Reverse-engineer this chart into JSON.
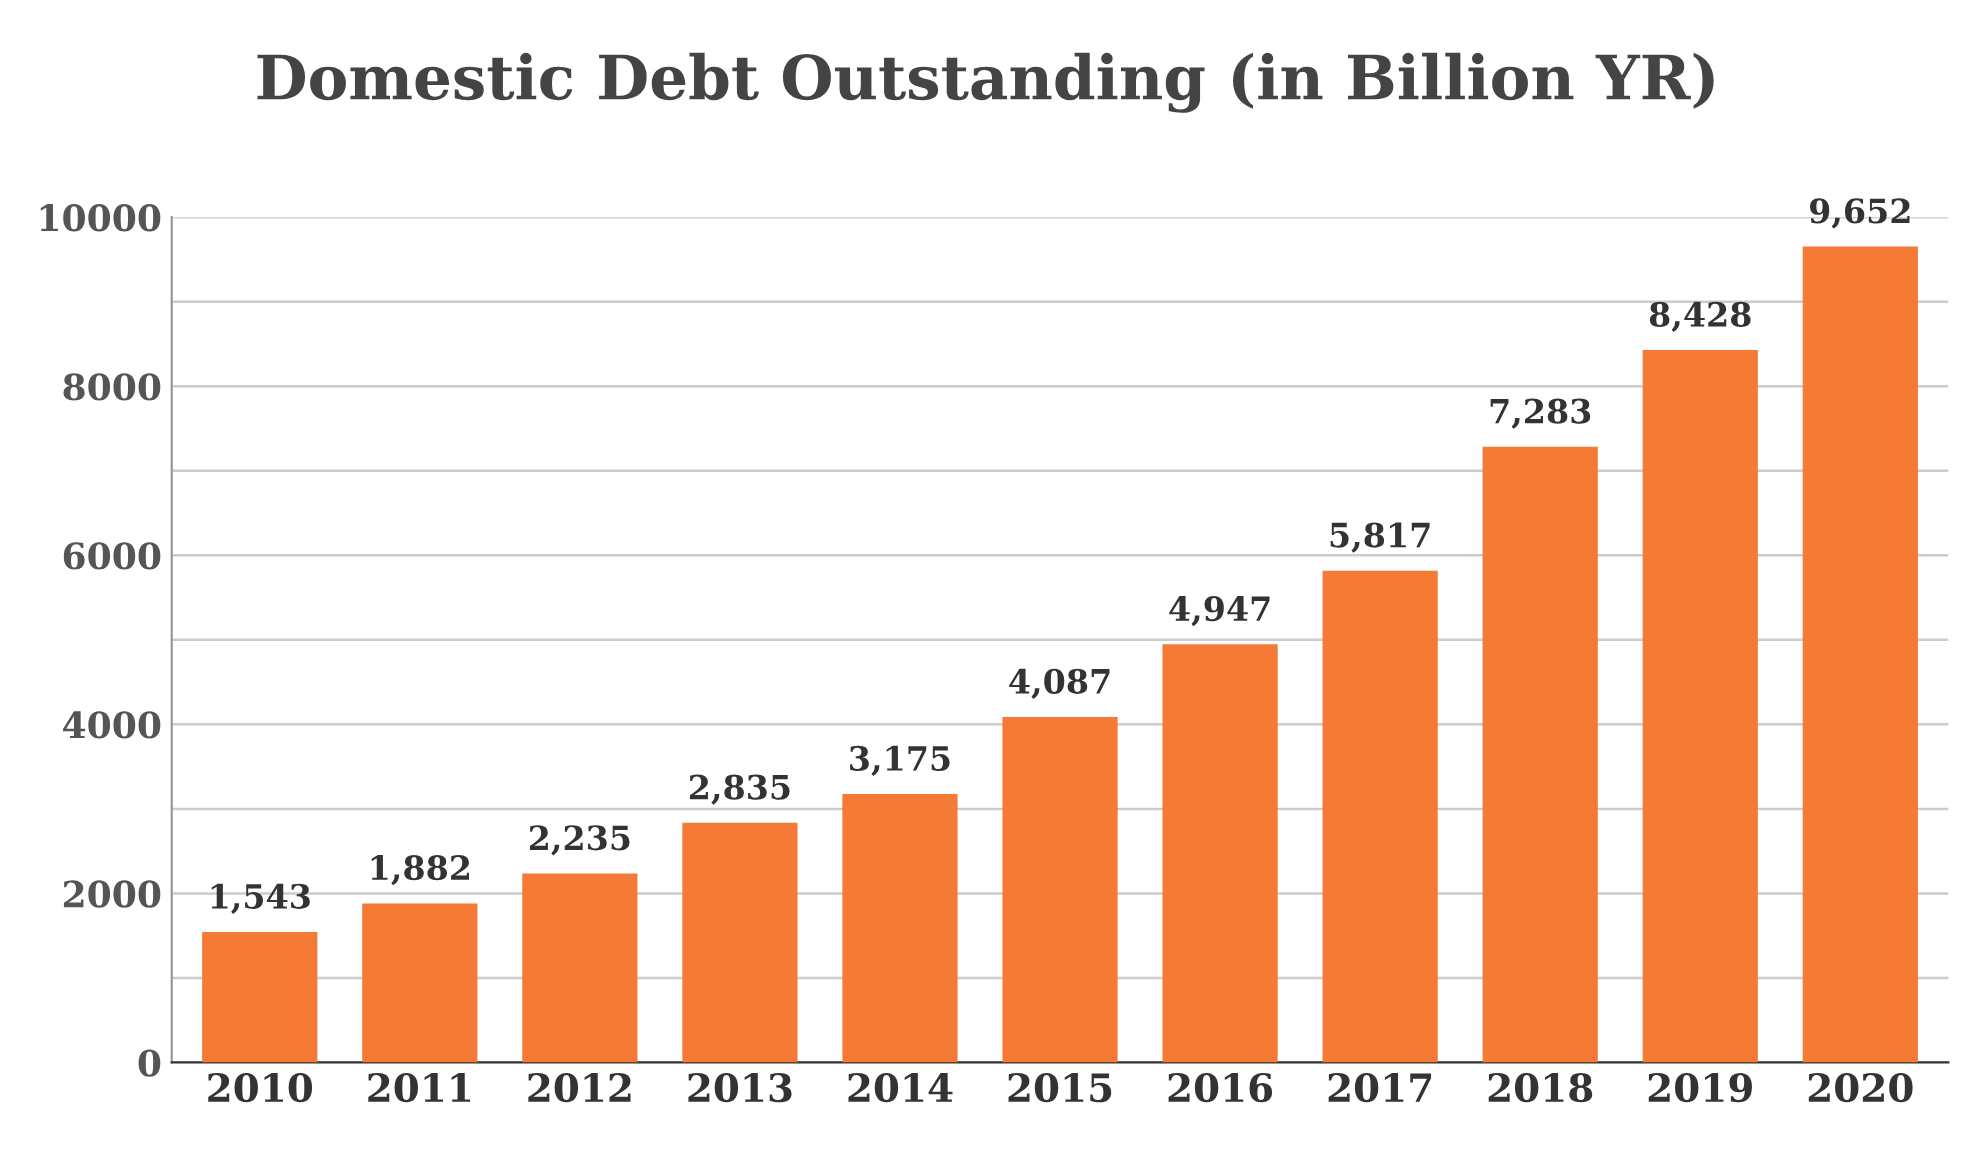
{
  "chart_data": {
    "type": "bar",
    "title": "Domestic Debt Outstanding (in Billion YR)",
    "categories": [
      "2010",
      "2011",
      "2012",
      "2013",
      "2014",
      "2015",
      "2016",
      "2017",
      "2018",
      "2019",
      "2020"
    ],
    "values": [
      1543,
      1882,
      2235,
      2835,
      3175,
      4087,
      4947,
      5817,
      7283,
      8428,
      9652
    ],
    "value_labels": [
      "1,543",
      "1,882",
      "2,235",
      "2,835",
      "3,175",
      "4,087",
      "4,947",
      "5,817",
      "7,283",
      "8,428",
      "9,652"
    ],
    "color": "#f47a35",
    "ylim": [
      0,
      10000
    ],
    "yticks": [
      0,
      {
        "value": 1000,
        "label": null
      },
      2000,
      {
        "value": 3000,
        "label": null
      },
      4000,
      {
        "value": 5000,
        "label": null
      },
      6000,
      {
        "value": 7000,
        "label": null
      },
      8000,
      {
        "value": 9000,
        "label": null
      },
      10000
    ],
    "grid": "y"
  }
}
